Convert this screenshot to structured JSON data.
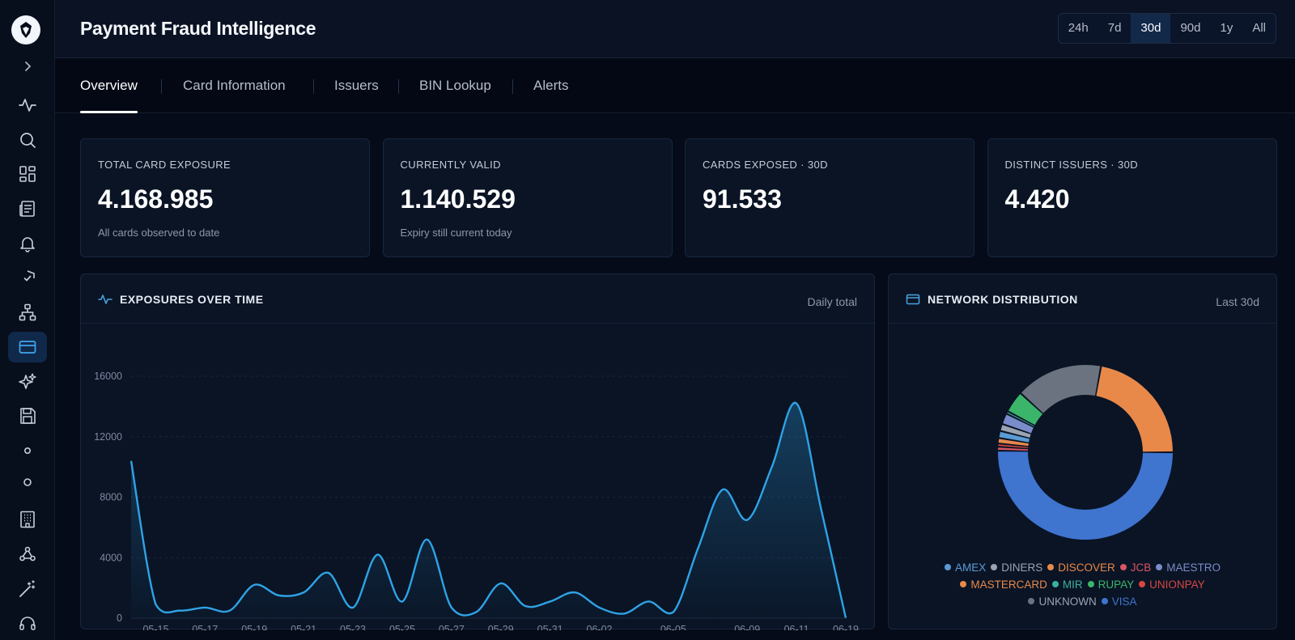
{
  "app": {
    "title": "Payment Fraud Intelligence",
    "logo_icon": "shield-logo-icon"
  },
  "sidebar": {
    "items": [
      {
        "name": "activity",
        "icon": "pulse-icon",
        "active": false
      },
      {
        "name": "search",
        "icon": "search-icon",
        "active": false
      },
      {
        "name": "dashboard",
        "icon": "grid-icon",
        "active": false
      },
      {
        "name": "reports",
        "icon": "newspaper-icon",
        "active": false
      },
      {
        "name": "notifications",
        "icon": "bell-icon",
        "active": false
      },
      {
        "name": "security",
        "icon": "shield-check-icon",
        "active": false
      },
      {
        "name": "network",
        "icon": "hierarchy-icon",
        "active": false
      },
      {
        "name": "cards",
        "icon": "credit-card-icon",
        "active": true
      },
      {
        "name": "insights",
        "icon": "sparkle-icon",
        "active": false
      },
      {
        "name": "storage",
        "icon": "floppy-icon",
        "active": false
      },
      {
        "name": "watch",
        "icon": "eye-icon",
        "active": false
      },
      {
        "name": "users",
        "icon": "user-icon",
        "active": false
      },
      {
        "name": "organizations",
        "icon": "building-icon",
        "active": false
      },
      {
        "name": "webhooks",
        "icon": "webhook-icon",
        "active": false
      },
      {
        "name": "tools",
        "icon": "magic-wand-icon",
        "active": false
      },
      {
        "name": "support",
        "icon": "headset-icon",
        "active": false
      }
    ]
  },
  "time_range": {
    "options": [
      "24h",
      "7d",
      "30d",
      "90d",
      "1y",
      "All"
    ],
    "selected": "30d"
  },
  "tabs": [
    {
      "label": "Overview",
      "active": true
    },
    {
      "label": "Card Information",
      "active": false
    },
    {
      "label": "Issuers",
      "active": false
    },
    {
      "label": "BIN Lookup",
      "active": false
    },
    {
      "label": "Alerts",
      "active": false
    }
  ],
  "stats": [
    {
      "label": "TOTAL CARD EXPOSURE",
      "value": "4.168.985",
      "sub": "All cards observed to date"
    },
    {
      "label": "CURRENTLY VALID",
      "value": "1.140.529",
      "sub": "Expiry still current today"
    },
    {
      "label": "CARDS EXPOSED · 30D",
      "value": "91.533",
      "sub": ""
    },
    {
      "label": "DISTINCT ISSUERS · 30D",
      "value": "4.420",
      "sub": ""
    }
  ],
  "exposures_panel": {
    "title": "EXPOSURES OVER TIME",
    "note": "Daily total"
  },
  "network_panel": {
    "title": "NETWORK DISTRIBUTION",
    "note": "Last 30d"
  },
  "chart_data": [
    {
      "type": "area",
      "title": "EXPOSURES OVER TIME",
      "ylim": [
        0,
        16000
      ],
      "yticks": [
        "16000",
        "12000",
        "8000",
        "4000",
        "0"
      ],
      "ytick_values": [
        16000,
        12000,
        8000,
        4000,
        0
      ],
      "grid": true,
      "color": "#2fa3e6",
      "x_tick_labels": [
        "05-15",
        "05-17",
        "05-19",
        "05-21",
        "05-23",
        "05-25",
        "05-27",
        "05-29",
        "05-31",
        "06-02",
        "06-05",
        "06-09",
        "06-11",
        "06-19"
      ],
      "x_tick_index": [
        1,
        3,
        5,
        7,
        9,
        11,
        13,
        15,
        17,
        19,
        22,
        25,
        27,
        29
      ],
      "x": [
        "05-14",
        "05-15",
        "05-16",
        "05-17",
        "05-18",
        "05-19",
        "05-20",
        "05-21",
        "05-22",
        "05-23",
        "05-24",
        "05-25",
        "05-26",
        "05-27",
        "05-28",
        "05-29",
        "05-30",
        "05-31",
        "06-01",
        "06-02",
        "06-03",
        "06-04",
        "06-05",
        "06-07",
        "06-08",
        "06-09",
        "06-10",
        "06-11",
        "06-12",
        "06-19"
      ],
      "values": [
        10400,
        900,
        500,
        700,
        500,
        2200,
        1500,
        1700,
        3000,
        700,
        4200,
        1100,
        5200,
        700,
        400,
        2300,
        800,
        1100,
        1700,
        700,
        300,
        1100,
        400,
        4600,
        8500,
        6500,
        10000,
        14200,
        7200,
        0
      ]
    },
    {
      "type": "pie",
      "title": "NETWORK DISTRIBUTION",
      "legend_position": "bottom",
      "donut": true,
      "categories": [
        "AMEX",
        "DINERS",
        "DISCOVER",
        "JCB",
        "MAESTRO",
        "MASTERCARD",
        "MIR",
        "RUPAY",
        "UNIONPAY",
        "UNKNOWN",
        "VISA"
      ],
      "colors": [
        "#5b9bd5",
        "#9aa3b2",
        "#e8894a",
        "#d95563",
        "#7a8cc9",
        "#e8894a",
        "#3bb0a0",
        "#3bb56a",
        "#d9463f",
        "#6b7280",
        "#3f74cf"
      ],
      "values": [
        1.3,
        1.3,
        1.0,
        0.7,
        2.0,
        22.0,
        0.5,
        4.0,
        0.6,
        16.0,
        50.0
      ],
      "draw_order": [
        "VISA",
        "JCB",
        "UNIONPAY",
        "DISCOVER",
        "AMEX",
        "DINERS",
        "MAESTRO",
        "MIR",
        "RUPAY",
        "UNKNOWN",
        "MASTERCARD"
      ]
    }
  ]
}
